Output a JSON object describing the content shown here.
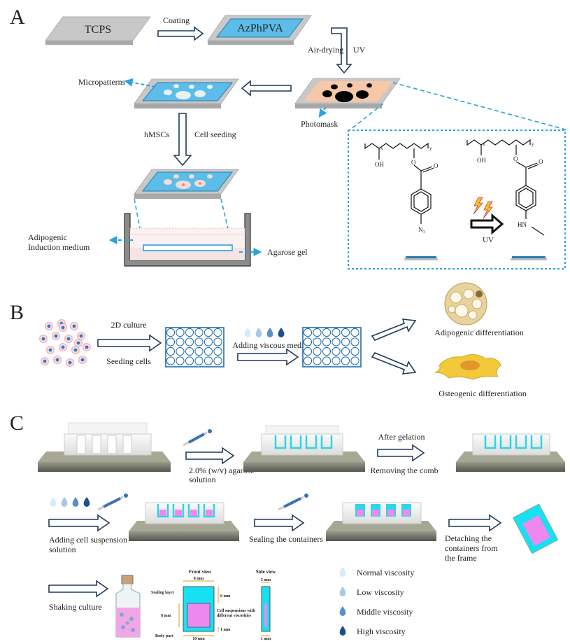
{
  "panels": {
    "a": "A",
    "b": "B",
    "c": "C"
  },
  "panel_a": {
    "tcps": "TCPS",
    "coating": "Coating",
    "azphpva": "AzPhPVA",
    "air_drying": "Air-drying",
    "uv_step": "UV",
    "micropatterns": "Micropatterns",
    "photomask": "Photomask",
    "hmscs": "hMSCs",
    "cell_seeding": "Cell seeding",
    "medium_line1": "Adipogenic",
    "medium_line2": "Induction medium",
    "agarose_gel": "Agarose gel",
    "chem": {
      "x_sub": "x",
      "y_sub": "y",
      "oh": "OH",
      "o": "O",
      "n3_n": "N",
      "n3_sub": "3",
      "hn": "HN",
      "uv_arrow": "UV"
    }
  },
  "panel_b": {
    "culture_2d": "2D culture",
    "seeding_cells": "Seeding cells",
    "adding_viscous": "Adding viscous media",
    "adipogenic": "Adipogenic differentiation",
    "osteogenic": "Osteogenic differentiation"
  },
  "panel_c": {
    "agarose_line1": "2.0% (w/v) agarose",
    "agarose_line2": "solution",
    "after_gelation": "After gelation",
    "removing_comb": "Removing the comb",
    "adding_line1": "Adding cell suspension",
    "adding_line2": "solution",
    "sealing": "Sealing the containers",
    "detach_line1": "Detaching the",
    "detach_line2": "containers from",
    "detach_line3": "the frame",
    "shaking": "Shaking culture",
    "front_view": "Front view",
    "side_view": "Side view",
    "dim_8mm_top": "8 mm",
    "dim_6mm": "6 mm",
    "dim_8mm_left": "8 mm",
    "dim_1mm_right": "1 mm",
    "dim_10mm": "10 mm",
    "dim_3mm": "3 mm",
    "dim_1mm_side": "1 mm",
    "sealing_layer": "Sealing layer",
    "cell_susp_line1": "Cell suspensions with",
    "cell_susp_line2": "different viscosities",
    "body_part": "Body part",
    "legend": [
      {
        "label": "Normal viscosity",
        "color": "#dce9f7"
      },
      {
        "label": "Low viscosity",
        "color": "#a9c8e8"
      },
      {
        "label": "Middle viscosity",
        "color": "#5b8fc9"
      },
      {
        "label": "High viscosity",
        "color": "#1f4e8a"
      }
    ]
  },
  "colors": {
    "arrow_outline": "#1f3a5a",
    "dashed_blue": "#2aa3dc",
    "film_blue": "#5bbde8",
    "mask_peach": "#f6c8a8",
    "cyan": "#17e1f0",
    "magenta": "#ee88ee"
  }
}
